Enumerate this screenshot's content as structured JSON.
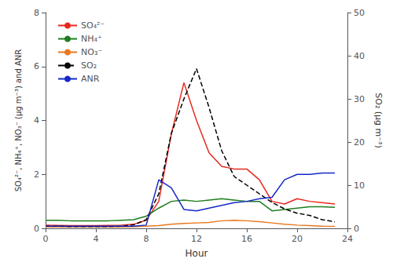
{
  "chart_data": {
    "type": "line",
    "xlabel": "Hour",
    "ylabel": "SO₄²⁻, NH₄⁺, NO₃⁻ (μg m⁻³) and ANR",
    "y2label": "SO₂ (μg m⁻³)",
    "x": [
      0,
      1,
      2,
      3,
      4,
      5,
      6,
      7,
      8,
      9,
      10,
      11,
      12,
      13,
      14,
      15,
      16,
      17,
      18,
      19,
      20,
      21,
      22,
      23
    ],
    "series": [
      {
        "name": "SO₄²⁻",
        "color": "#e8281e",
        "values": [
          0.12,
          0.11,
          0.1,
          0.1,
          0.1,
          0.11,
          0.12,
          0.15,
          0.3,
          1.0,
          3.5,
          5.4,
          4.0,
          2.8,
          2.3,
          2.2,
          2.2,
          1.8,
          1.0,
          0.9,
          1.1,
          1.0,
          0.95,
          0.9
        ]
      },
      {
        "name": "NH₄⁺",
        "color": "#1e7d1e",
        "values": [
          0.3,
          0.3,
          0.28,
          0.28,
          0.28,
          0.28,
          0.3,
          0.32,
          0.45,
          0.75,
          1.0,
          1.05,
          1.0,
          1.05,
          1.1,
          1.05,
          1.0,
          1.0,
          0.65,
          0.7,
          0.75,
          0.8,
          0.8,
          0.78
        ]
      },
      {
        "name": "NO₃⁻",
        "color": "#e87820",
        "values": [
          0.05,
          0.05,
          0.05,
          0.05,
          0.05,
          0.05,
          0.05,
          0.06,
          0.08,
          0.1,
          0.15,
          0.18,
          0.2,
          0.22,
          0.28,
          0.3,
          0.28,
          0.25,
          0.2,
          0.15,
          0.12,
          0.1,
          0.08,
          0.07
        ]
      },
      {
        "name": "SO₂",
        "color": "#000000",
        "axis": "y2",
        "line_style": "dashed",
        "values": [
          0.5,
          0.5,
          0.4,
          0.4,
          0.4,
          0.4,
          0.5,
          0.8,
          2.0,
          8.0,
          22.0,
          30.0,
          37.0,
          28.0,
          18.0,
          12.0,
          10.0,
          8.0,
          6.0,
          4.5,
          3.5,
          3.0,
          2.0,
          1.5
        ]
      },
      {
        "name": "ANR",
        "color": "#1428c8",
        "values": [
          0.08,
          0.08,
          0.08,
          0.08,
          0.08,
          0.08,
          0.08,
          0.08,
          0.12,
          1.8,
          1.5,
          0.7,
          0.65,
          0.75,
          0.85,
          0.95,
          1.0,
          1.1,
          1.15,
          1.8,
          2.0,
          2.0,
          2.05,
          2.05
        ]
      }
    ],
    "xlim": [
      0,
      24
    ],
    "xticks": [
      0,
      4,
      8,
      12,
      16,
      20,
      24
    ],
    "ylim": [
      0,
      8
    ],
    "yticks": [
      0,
      2,
      4,
      6,
      8
    ],
    "y2lim": [
      0,
      50
    ],
    "y2ticks": [
      0,
      10,
      20,
      30,
      40,
      50
    ],
    "grid": false,
    "legend": "upper left"
  }
}
